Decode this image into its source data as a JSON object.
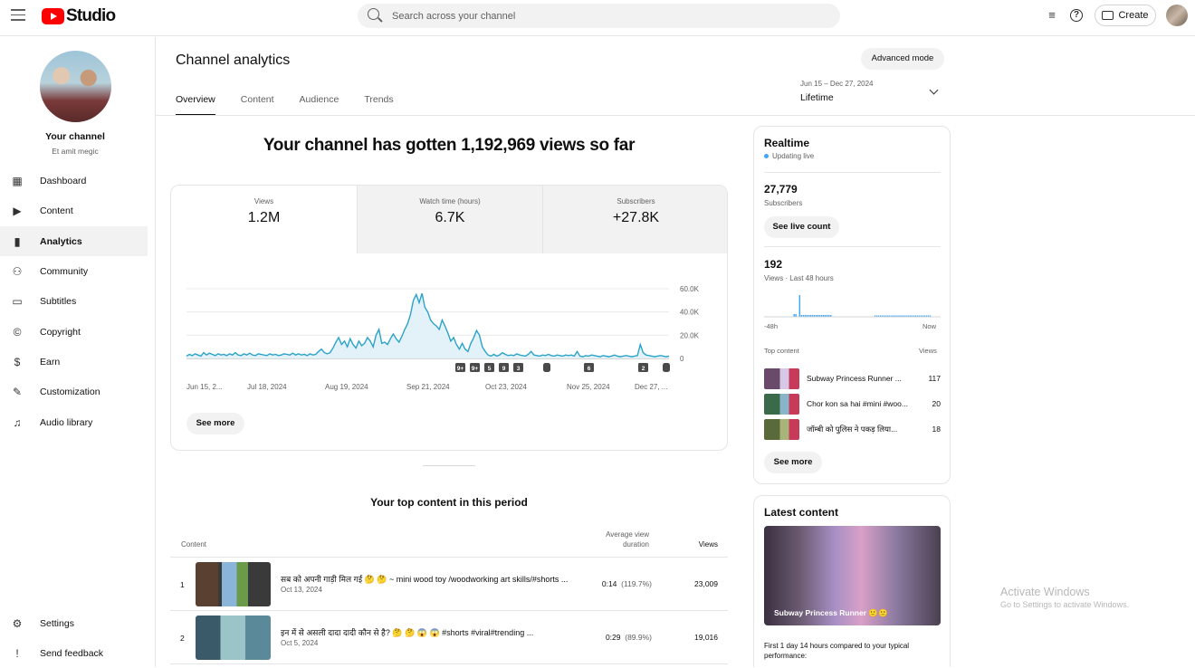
{
  "app": {
    "logo_text": "Studio"
  },
  "topbar": {
    "search_placeholder": "Search across your channel",
    "create_label": "Create"
  },
  "sidebar": {
    "channel_name": "Your channel",
    "channel_handle": "Et amit megic",
    "items": [
      {
        "label": "Dashboard",
        "icon": "dashboard-icon"
      },
      {
        "label": "Content",
        "icon": "content-icon"
      },
      {
        "label": "Analytics",
        "icon": "analytics-icon",
        "active": true
      },
      {
        "label": "Community",
        "icon": "community-icon"
      },
      {
        "label": "Subtitles",
        "icon": "subtitles-icon"
      },
      {
        "label": "Copyright",
        "icon": "copyright-icon"
      },
      {
        "label": "Earn",
        "icon": "earn-icon"
      },
      {
        "label": "Customization",
        "icon": "customization-icon"
      },
      {
        "label": "Audio library",
        "icon": "audio-library-icon"
      }
    ],
    "bottom": [
      {
        "label": "Settings",
        "icon": "settings-icon"
      },
      {
        "label": "Send feedback",
        "icon": "feedback-icon"
      }
    ]
  },
  "header": {
    "title": "Channel analytics",
    "advanced_mode": "Advanced mode",
    "tabs": [
      "Overview",
      "Content",
      "Audience",
      "Trends"
    ],
    "date_range": "Jun 15 – Dec 27, 2024",
    "date_label": "Lifetime"
  },
  "overview": {
    "headline": "Your channel has gotten 1,192,969 views so far",
    "metrics": [
      {
        "label": "Views",
        "value": "1.2M"
      },
      {
        "label": "Watch time (hours)",
        "value": "6.7K"
      },
      {
        "label": "Subscribers",
        "value": "+27.8K"
      }
    ],
    "see_more": "See more",
    "markers": [
      "9+",
      "9+",
      "5",
      "9",
      "3",
      "6",
      "2"
    ]
  },
  "chart_data": {
    "type": "area",
    "series": [
      {
        "values": [
          2000,
          3500,
          2500,
          4000,
          3000,
          2000,
          5000,
          3000,
          4500,
          3500,
          2500,
          4000,
          3000,
          3500,
          2500,
          4000,
          3000,
          5000,
          3000,
          2500,
          4000,
          3000,
          4500,
          3000,
          2500,
          4000,
          3500,
          3000,
          2500,
          4000,
          3000,
          3500,
          2500,
          3000,
          4000,
          3500,
          3000,
          4500,
          3000,
          4000,
          3000,
          3500,
          2500,
          4000,
          3000,
          3500,
          6000,
          8000,
          5000,
          4000,
          5000,
          9000,
          14000,
          18000,
          12000,
          15000,
          10000,
          17000,
          12000,
          9000,
          15000,
          11000,
          13000,
          18000,
          15000,
          10000,
          20000,
          25000,
          13000,
          14000,
          12000,
          17000,
          21000,
          17000,
          14000,
          19000,
          25000,
          30000,
          38000,
          50000,
          55000,
          48000,
          56000,
          44000,
          40000,
          33000,
          30000,
          28000,
          25000,
          33000,
          28000,
          22000,
          15000,
          18000,
          12000,
          8000,
          13000,
          8000,
          6000,
          13000,
          18000,
          24000,
          20000,
          10000,
          6000,
          3000,
          2000,
          3500,
          2000,
          3000,
          5000,
          3500,
          2500,
          3000,
          2500,
          4000,
          3000,
          2500,
          2000,
          3500,
          6000,
          3000,
          2500,
          2000,
          3000,
          2500,
          3500,
          2500,
          2000,
          3000,
          2500,
          2000,
          3000,
          2500,
          3000,
          2000,
          6000,
          2000,
          1500,
          2500,
          2000,
          3000,
          2500,
          2000,
          1500,
          2500,
          2000,
          1500,
          2000,
          3000,
          2000,
          1500,
          2000,
          2500,
          2000,
          1500,
          2000,
          2500,
          12000,
          5000,
          3000,
          2500,
          2000,
          1500,
          2000,
          2500,
          2000,
          1500,
          2000
        ]
      }
    ],
    "x_ticks": [
      "Jun 15, 2...",
      "Jul 18, 2024",
      "Aug 19, 2024",
      "Sep 21, 2024",
      "Oct 23, 2024",
      "Nov 25, 2024",
      "Dec 27, ..."
    ],
    "y_ticks": [
      "60.0K",
      "40.0K",
      "20.0K",
      "0"
    ],
    "ylim": [
      0,
      60000
    ]
  },
  "top_content": {
    "title": "Your top content in this period",
    "col_content": "Content",
    "col_avd_line1": "Average view",
    "col_avd_line2": "duration",
    "col_views": "Views",
    "rows": [
      {
        "rank": "1",
        "title": "सब को अपनी गाड़ी मिल गई 🤔 🤔 ~ mini wood toy /woodworking art skills/#shorts ...",
        "date": "Oct 13, 2024",
        "duration": "0:14",
        "pct": "(119.7%)",
        "views": "23,009"
      },
      {
        "rank": "2",
        "title": "इन में से असली दादा दादी कौन से है? 🤔 🤔 😱 😱 #shorts #viral#trending ...",
        "date": "Oct 5, 2024",
        "duration": "0:29",
        "pct": "(89.9%)",
        "views": "19,016"
      }
    ]
  },
  "realtime": {
    "title": "Realtime",
    "status": "Updating live",
    "subs_value": "27,779",
    "subs_label": "Subscribers",
    "live_count_btn": "See live count",
    "views_value": "192",
    "views_label": "Views · Last 48 hours",
    "axis_start": "-48h",
    "axis_end": "Now",
    "top_content_label": "Top content",
    "views_col": "Views",
    "items": [
      {
        "title": "Subway Princess Runner ...",
        "views": "117"
      },
      {
        "title": "Chor kon sa hai #mini #woo...",
        "views": "20"
      },
      {
        "title": "जॉम्बी को पुलिस ने पकड़ लिया...",
        "views": "18"
      }
    ],
    "see_more": "See more"
  },
  "latest_content": {
    "title": "Latest content",
    "video_title": "Subway Princess Runner 🙂🙂",
    "footer": "First 1 day 14 hours compared to your typical performance:"
  },
  "watermark": {
    "line1": "Activate Windows",
    "line2": "Go to Settings to activate Windows."
  }
}
